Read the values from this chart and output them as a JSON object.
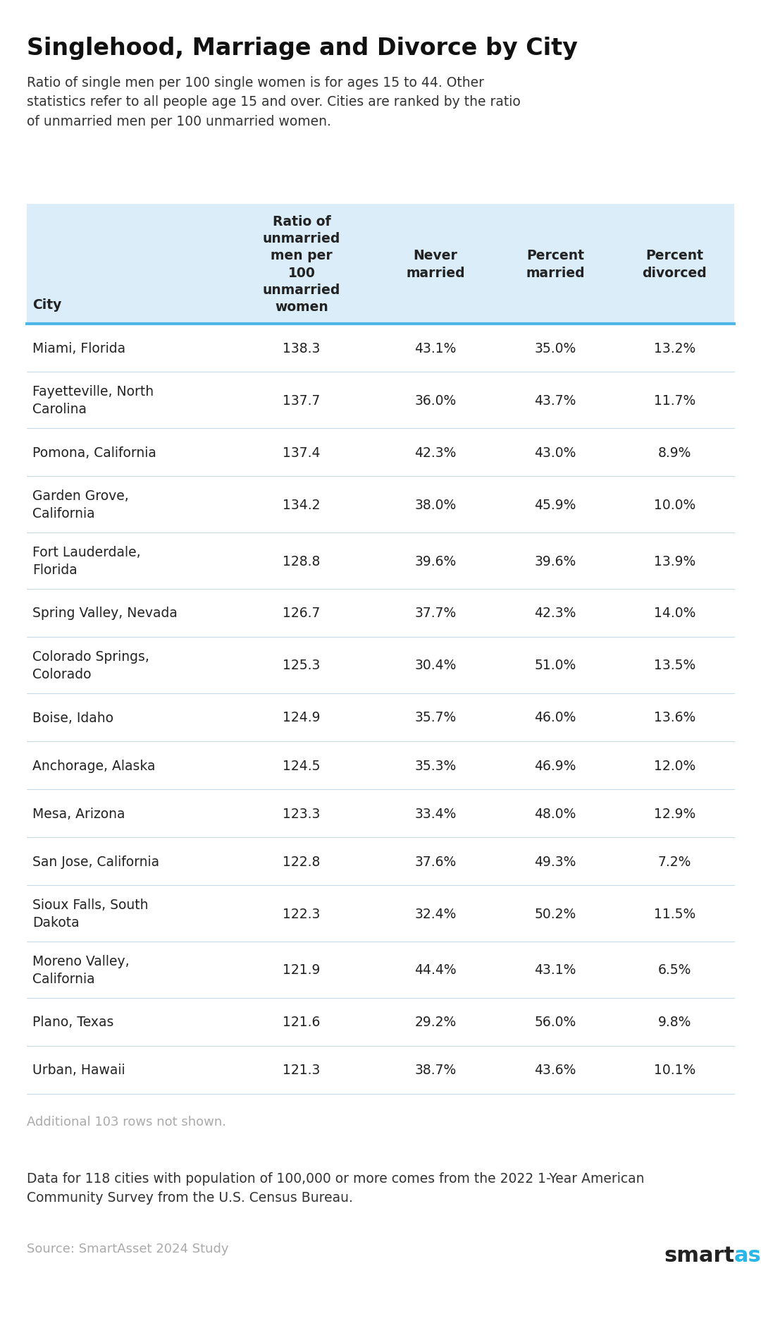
{
  "title": "Singlehood, Marriage and Divorce by City",
  "subtitle": "Ratio of single men per 100 single women is for ages 15 to 44. Other\nstatistics refer to all people age 15 and over. Cities are ranked by the ratio\nof unmarried men per 100 unmarried women.",
  "col_headers": [
    "City",
    "Ratio of\nunmarried\nmen per\n100\nunmarried\nwomen",
    "Never\nmarried",
    "Percent\nmarried",
    "Percent\ndivorced"
  ],
  "rows": [
    [
      "Miami, Florida",
      "138.3",
      "43.1%",
      "35.0%",
      "13.2%"
    ],
    [
      "Fayetteville, North\nCarolina",
      "137.7",
      "36.0%",
      "43.7%",
      "11.7%"
    ],
    [
      "Pomona, California",
      "137.4",
      "42.3%",
      "43.0%",
      "8.9%"
    ],
    [
      "Garden Grove,\nCalifornia",
      "134.2",
      "38.0%",
      "45.9%",
      "10.0%"
    ],
    [
      "Fort Lauderdale,\nFlorida",
      "128.8",
      "39.6%",
      "39.6%",
      "13.9%"
    ],
    [
      "Spring Valley, Nevada",
      "126.7",
      "37.7%",
      "42.3%",
      "14.0%"
    ],
    [
      "Colorado Springs,\nColorado",
      "125.3",
      "30.4%",
      "51.0%",
      "13.5%"
    ],
    [
      "Boise, Idaho",
      "124.9",
      "35.7%",
      "46.0%",
      "13.6%"
    ],
    [
      "Anchorage, Alaska",
      "124.5",
      "35.3%",
      "46.9%",
      "12.0%"
    ],
    [
      "Mesa, Arizona",
      "123.3",
      "33.4%",
      "48.0%",
      "12.9%"
    ],
    [
      "San Jose, California",
      "122.8",
      "37.6%",
      "49.3%",
      "7.2%"
    ],
    [
      "Sioux Falls, South\nDakota",
      "122.3",
      "32.4%",
      "50.2%",
      "11.5%"
    ],
    [
      "Moreno Valley,\nCalifornia",
      "121.9",
      "44.4%",
      "43.1%",
      "6.5%"
    ],
    [
      "Plano, Texas",
      "121.6",
      "29.2%",
      "56.0%",
      "9.8%"
    ],
    [
      "Urban, Hawaii",
      "121.3",
      "38.7%",
      "43.6%",
      "10.1%"
    ]
  ],
  "footnote1": "Additional 103 rows not shown.",
  "footnote2": "Data for 118 cities with population of 100,000 or more comes from the 2022 1-Year American\nCommunity Survey from the U.S. Census Bureau.",
  "source": "Source: SmartAsset 2024 Study",
  "header_bg": "#daedf8",
  "row_bg_even": "#edf5fb",
  "row_bg_odd": "#ffffff",
  "bg_color": "#ffffff",
  "header_text_color": "#222222",
  "data_text_color": "#222222",
  "title_color": "#111111",
  "subtitle_color": "#333333",
  "footnote_color": "#aaaaaa",
  "footnote2_color": "#333333",
  "source_color": "#aaaaaa",
  "divider_color": "#4db8e8",
  "row_line_color": "#c8dce8",
  "smart_color": "#222222",
  "asset_color": "#29b6e8"
}
